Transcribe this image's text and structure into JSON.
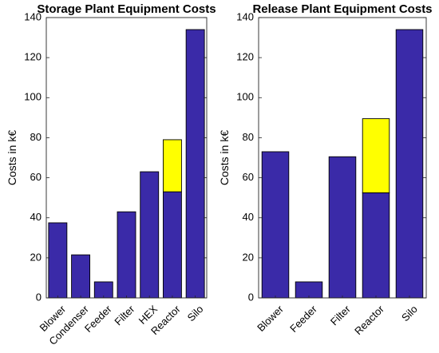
{
  "chart_data": [
    {
      "type": "bar",
      "stacked": true,
      "title": "Storage Plant Equipment Costs",
      "ylabel": "Costs in k€",
      "ylim": [
        0,
        140
      ],
      "yticks": [
        0,
        20,
        40,
        60,
        80,
        100,
        120,
        140
      ],
      "grid": false,
      "categories": [
        "Blower",
        "Condenser",
        "Feeder",
        "Filter",
        "HEX",
        "Reactor",
        "Silo"
      ],
      "series": [
        {
          "values": [
            37.5,
            21.5,
            8,
            43,
            63,
            53,
            134
          ],
          "color": "#3a2aa8"
        },
        {
          "values": [
            0,
            0,
            0,
            0,
            0,
            26,
            0
          ],
          "color": "#ffff00"
        }
      ]
    },
    {
      "type": "bar",
      "stacked": true,
      "title": "Release Plant Equipment Costs",
      "ylabel": "Costs in k€",
      "ylim": [
        0,
        140
      ],
      "yticks": [
        0,
        20,
        40,
        60,
        80,
        100,
        120,
        140
      ],
      "grid": false,
      "categories": [
        "Blower",
        "Feeder",
        "Filter",
        "Reactor",
        "Silo"
      ],
      "series": [
        {
          "values": [
            73,
            8,
            70.5,
            52.5,
            134
          ],
          "color": "#3a2aa8"
        },
        {
          "values": [
            0,
            0,
            0,
            37,
            0
          ],
          "color": "#ffff00"
        }
      ]
    }
  ]
}
